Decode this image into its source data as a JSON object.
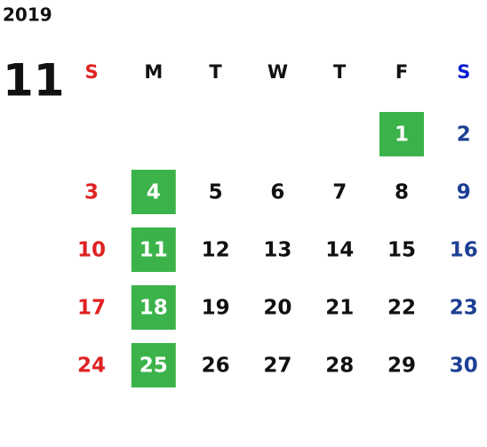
{
  "year": "2019",
  "month": "11",
  "weekdays": [
    "S",
    "M",
    "T",
    "W",
    "T",
    "F",
    "S"
  ],
  "weeks": [
    [
      null,
      null,
      null,
      null,
      null,
      {
        "day": "1",
        "highlight": true
      },
      {
        "day": "2",
        "highlight": false
      }
    ],
    [
      {
        "day": "3",
        "highlight": false
      },
      {
        "day": "4",
        "highlight": true
      },
      {
        "day": "5",
        "highlight": false
      },
      {
        "day": "6",
        "highlight": false
      },
      {
        "day": "7",
        "highlight": false
      },
      {
        "day": "8",
        "highlight": false
      },
      {
        "day": "9",
        "highlight": false
      }
    ],
    [
      {
        "day": "10",
        "highlight": false
      },
      {
        "day": "11",
        "highlight": true
      },
      {
        "day": "12",
        "highlight": false
      },
      {
        "day": "13",
        "highlight": false
      },
      {
        "day": "14",
        "highlight": false
      },
      {
        "day": "15",
        "highlight": false
      },
      {
        "day": "16",
        "highlight": false
      }
    ],
    [
      {
        "day": "17",
        "highlight": false
      },
      {
        "day": "18",
        "highlight": true
      },
      {
        "day": "19",
        "highlight": false
      },
      {
        "day": "20",
        "highlight": false
      },
      {
        "day": "21",
        "highlight": false
      },
      {
        "day": "22",
        "highlight": false
      },
      {
        "day": "23",
        "highlight": false
      }
    ],
    [
      {
        "day": "24",
        "highlight": false
      },
      {
        "day": "25",
        "highlight": true
      },
      {
        "day": "26",
        "highlight": false
      },
      {
        "day": "27",
        "highlight": false
      },
      {
        "day": "28",
        "highlight": false
      },
      {
        "day": "29",
        "highlight": false
      },
      {
        "day": "30",
        "highlight": false
      }
    ]
  ]
}
